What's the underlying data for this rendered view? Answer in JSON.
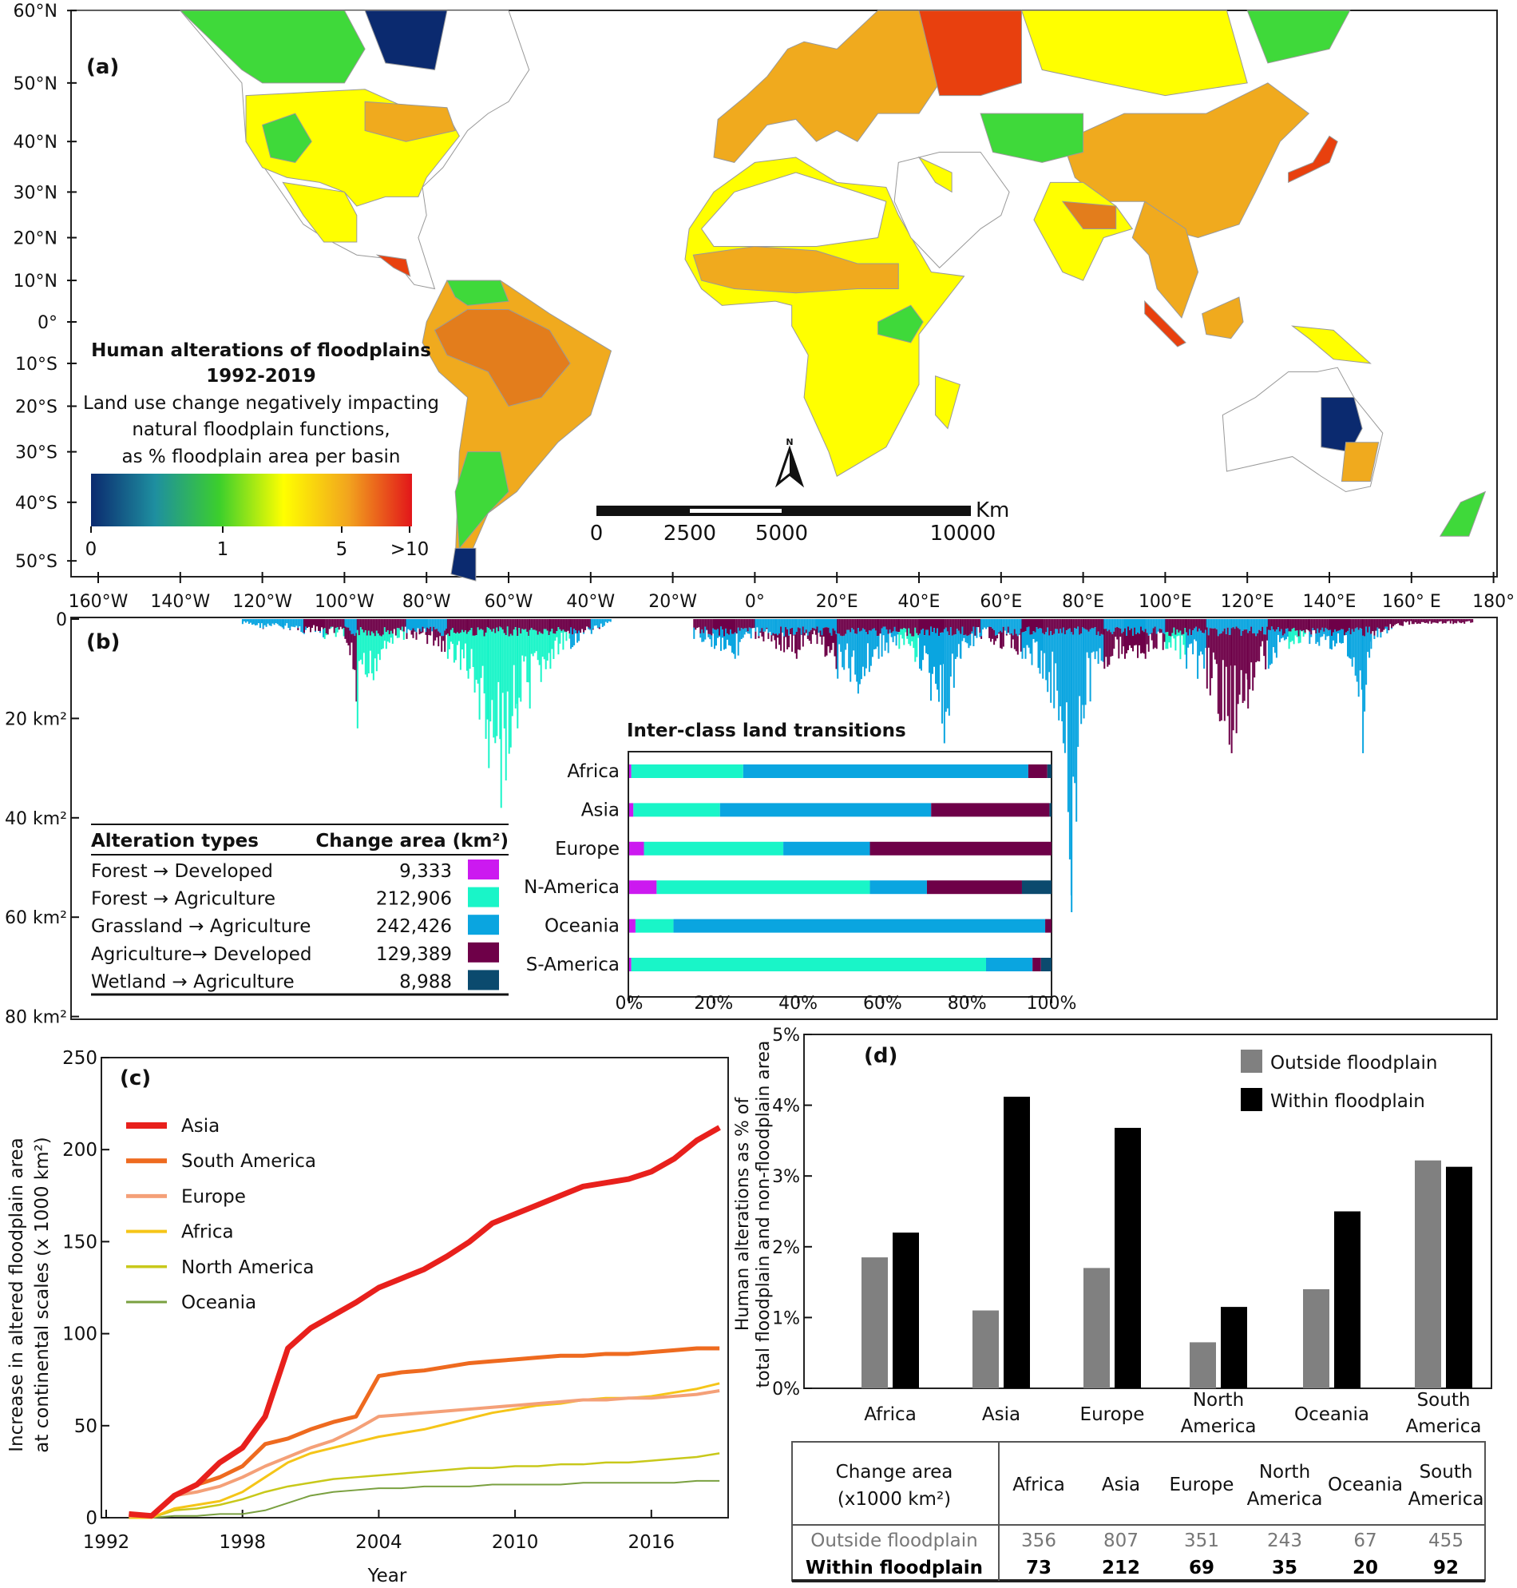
{
  "panel_a": {
    "label": "(a)",
    "lat_labels": [
      "60°N",
      "50°N",
      "40°N",
      "30°N",
      "20°N",
      "10°N",
      "0°",
      "10°S",
      "20°S",
      "30°S",
      "40°S",
      "50°S"
    ],
    "lon_labels": [
      "160°W",
      "140°W",
      "120°W",
      "100°W",
      "80°W",
      "60°W",
      "40°W",
      "20°W",
      "0°",
      "20°E",
      "40°E",
      "60°E",
      "80°E",
      "100°E",
      "120°E",
      "140°E",
      "160° E",
      "180°"
    ],
    "legend_title_1": "Human alterations of floodplains",
    "legend_title_2": "1992-2019",
    "legend_desc_1": "Land use change negatively impacting",
    "legend_desc_2": "natural floodplain functions,",
    "legend_desc_3": "as % floodplain area per basin",
    "colorbar_ticks": [
      "0",
      "1",
      "5",
      ">10"
    ],
    "colorbar_colors": [
      "#0b2a6f",
      "#1e8fa0",
      "#3ccf2c",
      "#ffff00",
      "#f2a51e",
      "#e2161a"
    ],
    "scale_labels": [
      "0",
      "2500",
      "5000",
      "10000"
    ],
    "scale_unit": "Km",
    "north_label": "N",
    "class_colors": {
      "none": "#ffffff",
      "lowest": "#0b2a6f",
      "low": "#3fd93a",
      "mid": "#ffff00",
      "high": "#f0aa1e",
      "higher": "#e37d1c",
      "highest": "#e8400e"
    }
  },
  "chart_data": [
    {
      "panel": "b",
      "type": "area",
      "label": "(b)",
      "y_ticks": [
        "0",
        "20 km²",
        "40 km²",
        "60 km²",
        "80 km²"
      ],
      "ylim": [
        0,
        80
      ],
      "y_unit": "km²",
      "x_axis": "longitude (shared with map)",
      "classes": [
        "Forest → Developed",
        "Forest → Agriculture",
        "Grassland → Agriculture",
        "Agriculture→ Developed",
        "Wetland → Agriculture"
      ],
      "class_colors": [
        "#cc19f0",
        "#19f5c8",
        "#0aa5e0",
        "#6e0048",
        "#0b4a6e"
      ],
      "profile": [
        [
          -125,
          1,
          3
        ],
        [
          -120,
          2,
          3
        ],
        [
          -115,
          2,
          3
        ],
        [
          -110,
          3,
          2
        ],
        [
          -105,
          4,
          1
        ],
        [
          -100,
          4,
          3
        ],
        [
          -97,
          22,
          1
        ],
        [
          -90,
          6,
          1
        ],
        [
          -85,
          4,
          3
        ],
        [
          -80,
          5,
          3
        ],
        [
          -75,
          8,
          1
        ],
        [
          -70,
          12,
          1
        ],
        [
          -65,
          30,
          1
        ],
        [
          -62,
          38,
          1
        ],
        [
          -58,
          22,
          1
        ],
        [
          -55,
          18,
          1
        ],
        [
          -50,
          10,
          1
        ],
        [
          -45,
          6,
          2
        ],
        [
          -40,
          3,
          3
        ],
        [
          -35,
          1,
          3
        ],
        [
          -15,
          4,
          2
        ],
        [
          -10,
          6,
          2
        ],
        [
          -5,
          8,
          2
        ],
        [
          0,
          4,
          3
        ],
        [
          5,
          6,
          3
        ],
        [
          10,
          8,
          3
        ],
        [
          15,
          5,
          3
        ],
        [
          20,
          12,
          2
        ],
        [
          25,
          15,
          2
        ],
        [
          30,
          8,
          2
        ],
        [
          35,
          6,
          1
        ],
        [
          40,
          10,
          2
        ],
        [
          46,
          25,
          2
        ],
        [
          50,
          8,
          2
        ],
        [
          55,
          4,
          3
        ],
        [
          60,
          6,
          3
        ],
        [
          65,
          8,
          2
        ],
        [
          70,
          12,
          2
        ],
        [
          75,
          25,
          2
        ],
        [
          77,
          59,
          2
        ],
        [
          80,
          20,
          2
        ],
        [
          85,
          10,
          3
        ],
        [
          90,
          8,
          3
        ],
        [
          95,
          8,
          3
        ],
        [
          100,
          6,
          1
        ],
        [
          105,
          10,
          2
        ],
        [
          110,
          14,
          3
        ],
        [
          116,
          27,
          3
        ],
        [
          120,
          18,
          3
        ],
        [
          125,
          10,
          2
        ],
        [
          130,
          6,
          1
        ],
        [
          135,
          5,
          2
        ],
        [
          140,
          6,
          2
        ],
        [
          145,
          8,
          2
        ],
        [
          148,
          27,
          2
        ],
        [
          150,
          6,
          2
        ],
        [
          155,
          2,
          2
        ],
        [
          160,
          1,
          2
        ],
        [
          170,
          1,
          2
        ],
        [
          175,
          1,
          2
        ]
      ],
      "legend_table": {
        "header_type": "Alteration types",
        "header_area": "Change area (km²)",
        "rows": [
          {
            "type": "Forest → Developed",
            "area": "9,333",
            "color": "#cc19f0"
          },
          {
            "type": "Forest → Agriculture",
            "area": "212,906",
            "color": "#19f5c8"
          },
          {
            "type": "Grassland → Agriculture",
            "area": "242,426",
            "color": "#0aa5e0"
          },
          {
            "type": "Agriculture→ Developed",
            "area": "129,389",
            "color": "#6e0048"
          },
          {
            "type": "Wetland → Agriculture",
            "area": "8,988",
            "color": "#0b4a6e"
          }
        ]
      }
    },
    {
      "panel": "b-inset",
      "type": "bar",
      "orientation": "horizontal-stacked-percent",
      "title": "Inter-class land transitions",
      "categories": [
        "Africa",
        "Asia",
        "Europe",
        "N-America",
        "Oceania",
        "S-America"
      ],
      "x_ticks": [
        "0%",
        "20%",
        "40%",
        "60%",
        "80%",
        "100%"
      ],
      "xlim": [
        0,
        100
      ],
      "series": [
        {
          "class": "Forest → Developed",
          "color": "#cc19f0",
          "values": [
            0.5,
            1,
            3.5,
            6.5,
            1.5,
            0.5
          ]
        },
        {
          "class": "Forest → Agriculture",
          "color": "#19f5c8",
          "values": [
            26.5,
            20.5,
            33,
            50.5,
            9,
            84
          ]
        },
        {
          "class": "Grassland → Agriculture",
          "color": "#0aa5e0",
          "values": [
            67.5,
            50,
            20.5,
            13.5,
            88,
            11
          ]
        },
        {
          "class": "Agriculture→ Developed",
          "color": "#6e0048",
          "values": [
            4.5,
            28,
            43,
            22.5,
            1.5,
            2
          ]
        },
        {
          "class": "Wetland → Agriculture",
          "color": "#0b4a6e",
          "values": [
            1,
            0.5,
            0,
            7,
            0,
            2.5
          ]
        }
      ]
    },
    {
      "panel": "c",
      "type": "line",
      "label": "(c)",
      "xlabel": "Year",
      "ylabel_1": "Increase in altered floodplain area",
      "ylabel_2": "at continental scales (x 1000 km²)",
      "x_ticks": [
        "1992",
        "1998",
        "2004",
        "2010",
        "2016"
      ],
      "y_ticks": [
        "0",
        "50",
        "100",
        "150",
        "200",
        "250"
      ],
      "xlim": [
        1992,
        2019.6
      ],
      "ylim": [
        0,
        250
      ],
      "x": [
        1993,
        1994,
        1995,
        1996,
        1997,
        1998,
        1999,
        2000,
        2001,
        2002,
        2003,
        2004,
        2005,
        2006,
        2007,
        2008,
        2009,
        2010,
        2011,
        2012,
        2013,
        2014,
        2015,
        2016,
        2017,
        2018,
        2019
      ],
      "series": [
        {
          "name": "Asia",
          "color": "#e8201c",
          "values": [
            2,
            1,
            12,
            18,
            30,
            38,
            55,
            92,
            103,
            110,
            117,
            125,
            130,
            135,
            142,
            150,
            160,
            165,
            170,
            175,
            180,
            182,
            184,
            188,
            195,
            205,
            212
          ]
        },
        {
          "name": "South America",
          "color": "#ee6a1f",
          "values": [
            2,
            1,
            12,
            18,
            22,
            28,
            40,
            43,
            48,
            52,
            55,
            77,
            79,
            80,
            82,
            84,
            85,
            86,
            87,
            88,
            88,
            89,
            89,
            90,
            91,
            92,
            92
          ]
        },
        {
          "name": "Europe",
          "color": "#f4a078",
          "values": [
            1,
            1,
            12,
            14,
            17,
            22,
            28,
            33,
            38,
            42,
            48,
            55,
            56,
            57,
            58,
            59,
            60,
            61,
            62,
            63,
            64,
            64,
            65,
            65,
            66,
            67,
            69
          ]
        },
        {
          "name": "Africa",
          "color": "#f5c518",
          "values": [
            0,
            0,
            5,
            7,
            9,
            14,
            22,
            30,
            35,
            38,
            41,
            44,
            46,
            48,
            51,
            54,
            57,
            59,
            61,
            62,
            64,
            65,
            65,
            66,
            68,
            70,
            73
          ]
        },
        {
          "name": "North America",
          "color": "#c8c81a",
          "values": [
            0,
            0,
            4,
            5,
            7,
            10,
            14,
            17,
            19,
            21,
            22,
            23,
            24,
            25,
            26,
            27,
            27,
            28,
            28,
            29,
            29,
            30,
            30,
            31,
            32,
            33,
            35
          ]
        },
        {
          "name": "Oceania",
          "color": "#7aa040",
          "values": [
            0,
            0,
            1,
            1,
            2,
            2,
            4,
            8,
            12,
            14,
            15,
            16,
            16,
            17,
            17,
            17,
            18,
            18,
            18,
            18,
            19,
            19,
            19,
            19,
            19,
            20,
            20
          ]
        }
      ]
    },
    {
      "panel": "d",
      "type": "bar",
      "label": "(d)",
      "ylabel_1": "Human alterations as % of",
      "ylabel_2": "total floodplain and non-floodplain area",
      "y_ticks": [
        "0%",
        "1%",
        "2%",
        "3%",
        "4%",
        "5%"
      ],
      "ylim": [
        0,
        5
      ],
      "categories": [
        [
          "Africa"
        ],
        [
          "Asia"
        ],
        [
          "Europe"
        ],
        [
          "North",
          "America"
        ],
        [
          "Oceania"
        ],
        [
          "South",
          "America"
        ]
      ],
      "series": [
        {
          "name": "Outside floodplain",
          "color": "#808080",
          "values": [
            1.85,
            1.1,
            1.7,
            0.65,
            1.4,
            3.22
          ]
        },
        {
          "name": "Within floodplain",
          "color": "#000000",
          "values": [
            2.2,
            4.12,
            3.68,
            1.15,
            2.5,
            3.13
          ]
        }
      ]
    }
  ],
  "table_d": {
    "header_1": "Change area",
    "header_2": "(x1000 km²)",
    "columns": [
      [
        "Africa"
      ],
      [
        "Asia"
      ],
      [
        "Europe"
      ],
      [
        "North",
        "America"
      ],
      [
        "Oceania"
      ],
      [
        "South",
        "America"
      ]
    ],
    "rows": [
      {
        "label": "Outside floodplain",
        "values": [
          "356",
          "807",
          "351",
          "243",
          "67",
          "455"
        ],
        "color": "#777777"
      },
      {
        "label": "Within floodplain",
        "values": [
          "73",
          "212",
          "69",
          "35",
          "20",
          "92"
        ],
        "color": "#000000"
      }
    ]
  }
}
